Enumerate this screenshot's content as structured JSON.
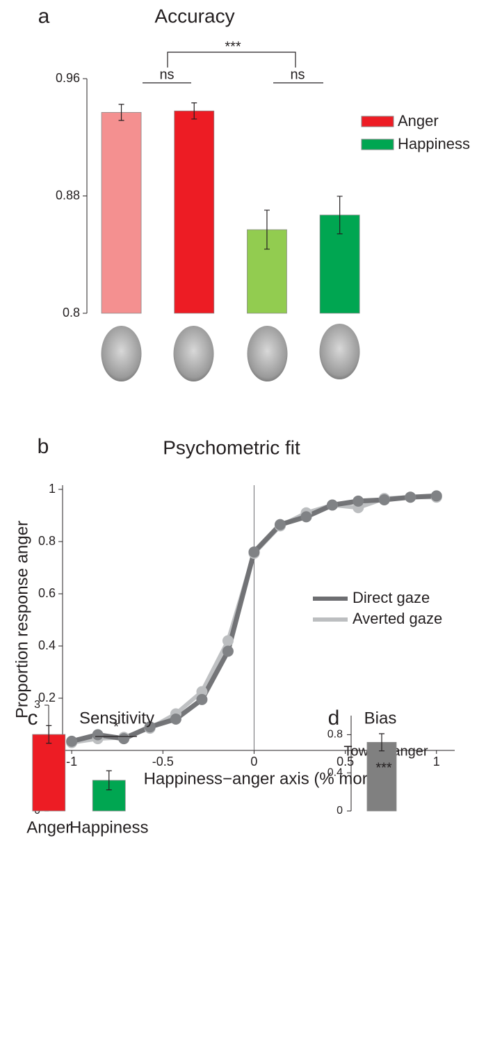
{
  "chart_data": [
    {
      "type": "bar",
      "label": "a",
      "title": "Accuracy",
      "values": [
        0.937,
        0.938,
        0.857,
        0.867
      ],
      "errors": [
        0.0055,
        0.0055,
        0.0133,
        0.0128
      ],
      "colors": [
        "#f49090",
        "#ed1c24",
        "#92cc50",
        "#00a651"
      ],
      "legend": [
        {
          "name": "Anger",
          "color": "#ed1c24"
        },
        {
          "name": "Happiness",
          "color": "#00a651"
        }
      ],
      "annotations": [
        "ns",
        "ns",
        "***"
      ],
      "ylim": [
        0.8,
        0.96
      ],
      "yticks": [
        0.8,
        0.88,
        0.96
      ]
    },
    {
      "type": "line",
      "label": "b",
      "title": "Psychometric fit",
      "x_label": "Happiness−anger axis (% morph)",
      "y_label": "Proportion response anger",
      "x": [
        -1,
        -0.857,
        -0.714,
        -0.571,
        -0.429,
        -0.286,
        -0.143,
        0,
        0.143,
        0.286,
        0.429,
        0.571,
        0.714,
        0.857,
        1
      ],
      "series": [
        {
          "name": "Direct gaze",
          "color": "#6d6e71",
          "values": [
            0.035,
            0.06,
            0.045,
            0.09,
            0.12,
            0.195,
            0.38,
            0.76,
            0.865,
            0.895,
            0.94,
            0.955,
            0.96,
            0.97,
            0.975
          ]
        },
        {
          "name": "Averted gaze",
          "color": "#bcbec0",
          "values": [
            0.03,
            0.045,
            0.05,
            0.085,
            0.14,
            0.225,
            0.42,
            0.755,
            0.86,
            0.91,
            0.94,
            0.93,
            0.965,
            0.97,
            0.97
          ]
        }
      ],
      "xlim": [
        -1.05,
        1.1
      ],
      "xticks": [
        -1,
        -0.5,
        0,
        0.5,
        1
      ],
      "ylim": [
        0,
        1
      ],
      "yticks": [
        0,
        0.2,
        0.4,
        0.6,
        0.8,
        1
      ]
    },
    {
      "type": "bar",
      "label": "c",
      "title": "Sensitivity",
      "categories": [
        "Anger",
        "Happiness"
      ],
      "values": [
        2.17,
        0.87
      ],
      "errors": [
        0.25,
        0.27
      ],
      "colors": [
        "#ed1c24",
        "#00a651"
      ],
      "annotations": [
        "*"
      ],
      "ylim": [
        0,
        3
      ],
      "yticks": [
        0,
        1,
        2,
        3
      ]
    },
    {
      "type": "bar",
      "label": "d",
      "title": "Bias",
      "subtitle": "Toward anger",
      "values": [
        0.72
      ],
      "errors": [
        0.09
      ],
      "colors": [
        "#808080"
      ],
      "annotations": [
        "***"
      ],
      "ylim": [
        0,
        1
      ],
      "yticks": [
        0,
        0.4,
        0.8
      ]
    }
  ]
}
